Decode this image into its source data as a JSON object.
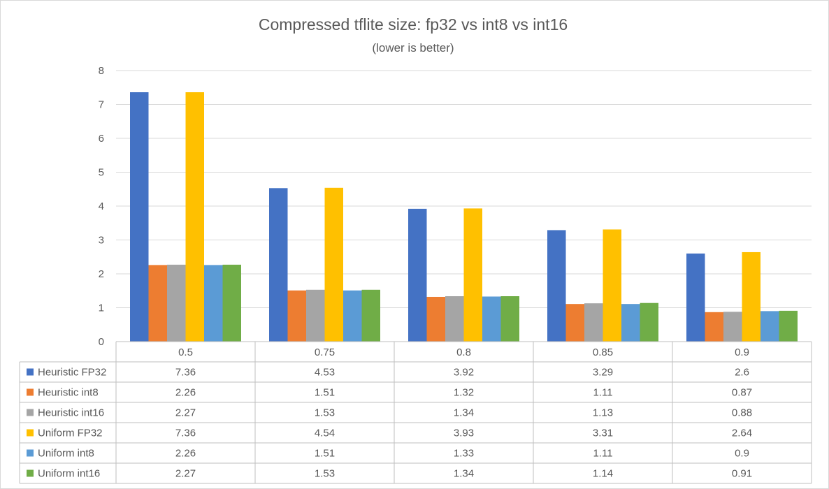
{
  "chart_data": {
    "type": "bar",
    "title": "Compressed tflite size: fp32 vs int8 vs int16",
    "subtitle": "(lower is better)",
    "xlabel": "",
    "ylabel": "",
    "ylim": [
      0,
      8
    ],
    "yticks": [
      0,
      1,
      2,
      3,
      4,
      5,
      6,
      7,
      8
    ],
    "grid": true,
    "legend": "data-table",
    "categories": [
      "0.5",
      "0.75",
      "0.8",
      "0.85",
      "0.9"
    ],
    "series": [
      {
        "name": "Heuristic FP32",
        "color": "#4472c4",
        "values": [
          7.36,
          4.53,
          3.92,
          3.29,
          2.6
        ]
      },
      {
        "name": "Heuristic int8",
        "color": "#ed7d31",
        "values": [
          2.26,
          1.51,
          1.32,
          1.11,
          0.87
        ]
      },
      {
        "name": "Heuristic int16",
        "color": "#a5a5a5",
        "values": [
          2.27,
          1.53,
          1.34,
          1.13,
          0.88
        ]
      },
      {
        "name": "Uniform FP32",
        "color": "#ffc000",
        "values": [
          7.36,
          4.54,
          3.93,
          3.31,
          2.64
        ]
      },
      {
        "name": "Uniform int8",
        "color": "#5b9bd5",
        "values": [
          2.26,
          1.51,
          1.33,
          1.11,
          0.9
        ]
      },
      {
        "name": "Uniform int16",
        "color": "#70ad47",
        "values": [
          2.27,
          1.53,
          1.34,
          1.14,
          0.91
        ]
      }
    ]
  }
}
